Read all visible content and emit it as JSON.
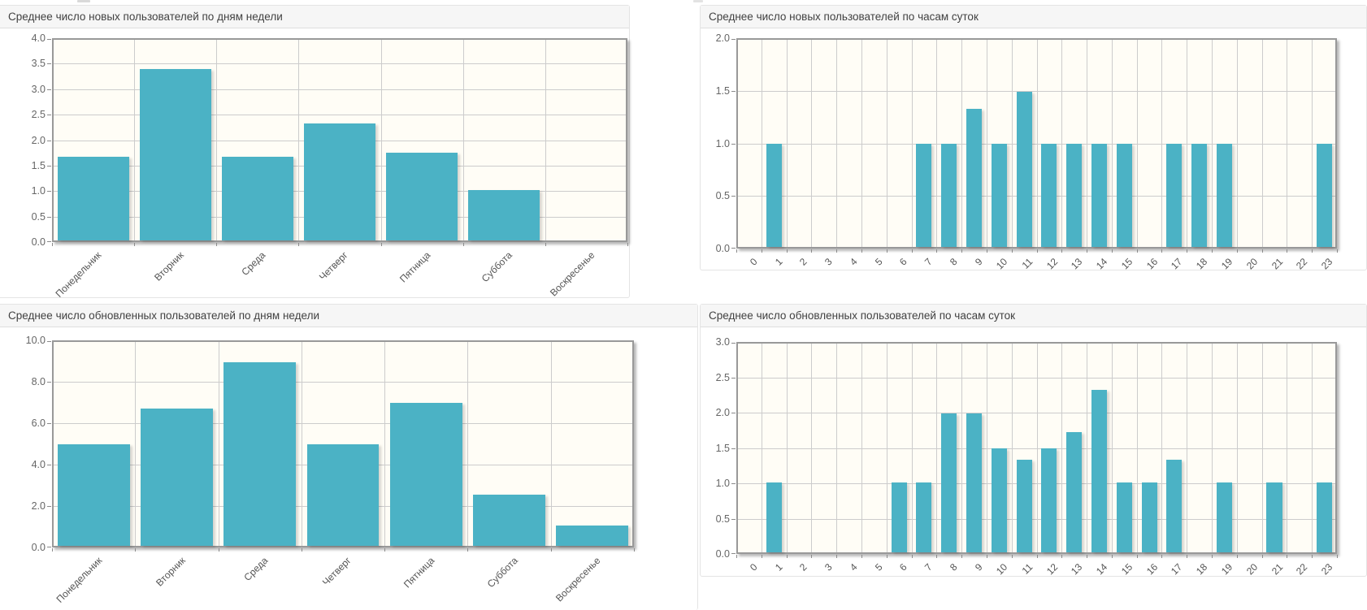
{
  "style": {
    "bar_color": "#4bb2c5",
    "plot_background": "#fffdf6",
    "grid_line_color": "#cccccc",
    "plot_border_color": "#999999",
    "header_background": "#f6f6f6",
    "title_color": "#414141"
  },
  "chart_data": [
    {
      "type": "bar",
      "title": "Среднее число новых пользователей по дням недели",
      "categories": [
        "Понедельник",
        "Вторник",
        "Среда",
        "Четверг",
        "Пятница",
        "Суббота",
        "Воскресенье"
      ],
      "values": [
        1.67,
        3.41,
        1.67,
        2.33,
        1.75,
        1.0,
        0
      ],
      "xlabel": "",
      "ylabel": "",
      "ylim": [
        0,
        4
      ],
      "ytick_labels": [
        "0.0",
        "0.5",
        "1.0",
        "1.5",
        "2.0",
        "2.5",
        "3.0",
        "3.5",
        "4.0"
      ],
      "grid": true,
      "legend_position": "none"
    },
    {
      "type": "bar",
      "title": "Среднее число новых пользователей по часам суток",
      "categories": [
        "0",
        "1",
        "2",
        "3",
        "4",
        "5",
        "6",
        "7",
        "8",
        "9",
        "10",
        "11",
        "12",
        "13",
        "14",
        "15",
        "16",
        "17",
        "18",
        "19",
        "20",
        "21",
        "22",
        "23"
      ],
      "values": [
        0,
        1,
        0,
        0,
        0,
        0,
        0,
        1,
        1,
        1.33,
        1,
        1.5,
        1,
        1,
        1,
        1,
        0,
        1,
        1,
        1,
        0,
        0,
        0,
        1
      ],
      "xlabel": "",
      "ylabel": "",
      "ylim": [
        0,
        2
      ],
      "ytick_labels": [
        "0.0",
        "0.5",
        "1.0",
        "1.5",
        "2.0"
      ],
      "grid": true,
      "legend_position": "none"
    },
    {
      "type": "bar",
      "title": "Среднее число обновленных пользователей по дням недели",
      "categories": [
        "Понедельник",
        "Вторник",
        "Среда",
        "Четверг",
        "Пятница",
        "Суббота",
        "Воскресенье"
      ],
      "values": [
        5.0,
        6.75,
        9.0,
        5.0,
        7.0,
        2.5,
        1.0
      ],
      "xlabel": "",
      "ylabel": "",
      "ylim": [
        0,
        10
      ],
      "ytick_labels": [
        "0.0",
        "2.0",
        "4.0",
        "6.0",
        "8.0",
        "10.0"
      ],
      "grid": true,
      "legend_position": "none"
    },
    {
      "type": "bar",
      "title": "Среднее число обновленных пользователей по часам суток",
      "categories": [
        "0",
        "1",
        "2",
        "3",
        "4",
        "5",
        "6",
        "7",
        "8",
        "9",
        "10",
        "11",
        "12",
        "13",
        "14",
        "15",
        "16",
        "17",
        "18",
        "19",
        "20",
        "21",
        "22",
        "23"
      ],
      "values": [
        0,
        1,
        0,
        0,
        0,
        0,
        1,
        1,
        2,
        2,
        1.5,
        1.33,
        1.5,
        1.73,
        2.33,
        1,
        1,
        1.33,
        0,
        1,
        0,
        1,
        0,
        1
      ],
      "xlabel": "",
      "ylabel": "",
      "ylim": [
        0,
        3
      ],
      "ytick_labels": [
        "0.0",
        "0.5",
        "1.0",
        "1.5",
        "2.0",
        "2.5",
        "3.0"
      ],
      "grid": true,
      "legend_position": "none"
    }
  ]
}
